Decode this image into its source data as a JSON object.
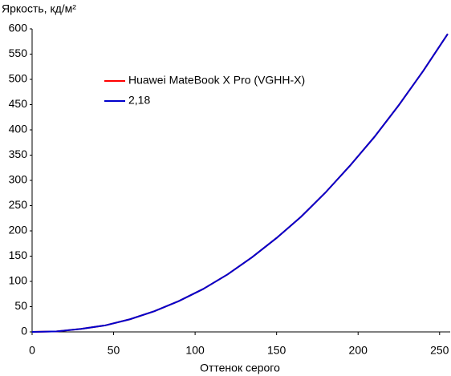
{
  "chart_data": {
    "type": "line",
    "y_label": "Яркость, кд/м²",
    "x_label": "Оттенок серого",
    "x": [
      0,
      15,
      30,
      45,
      60,
      75,
      90,
      105,
      120,
      135,
      150,
      165,
      180,
      195,
      210,
      225,
      240,
      255
    ],
    "series": [
      {
        "name": "Huawei MateBook X Pro (VGHH-X)",
        "color": "#ff0000",
        "values": [
          0,
          1,
          6,
          13,
          25,
          41,
          61,
          85,
          114,
          148,
          186,
          228,
          276,
          329,
          386,
          449,
          517,
          590
        ]
      },
      {
        "name": "2,18",
        "color": "#0000cc",
        "values": [
          0,
          1,
          6,
          13,
          25,
          41,
          61,
          85,
          114,
          148,
          186,
          228,
          276,
          329,
          386,
          449,
          517,
          590
        ]
      }
    ],
    "xlim": [
      0,
      257
    ],
    "xticks": [
      0,
      50,
      100,
      150,
      200,
      250
    ],
    "ylim": [
      0,
      600
    ],
    "yticks": [
      0,
      50,
      100,
      150,
      200,
      250,
      300,
      350,
      400,
      450,
      500,
      550,
      600
    ],
    "grid": false
  }
}
